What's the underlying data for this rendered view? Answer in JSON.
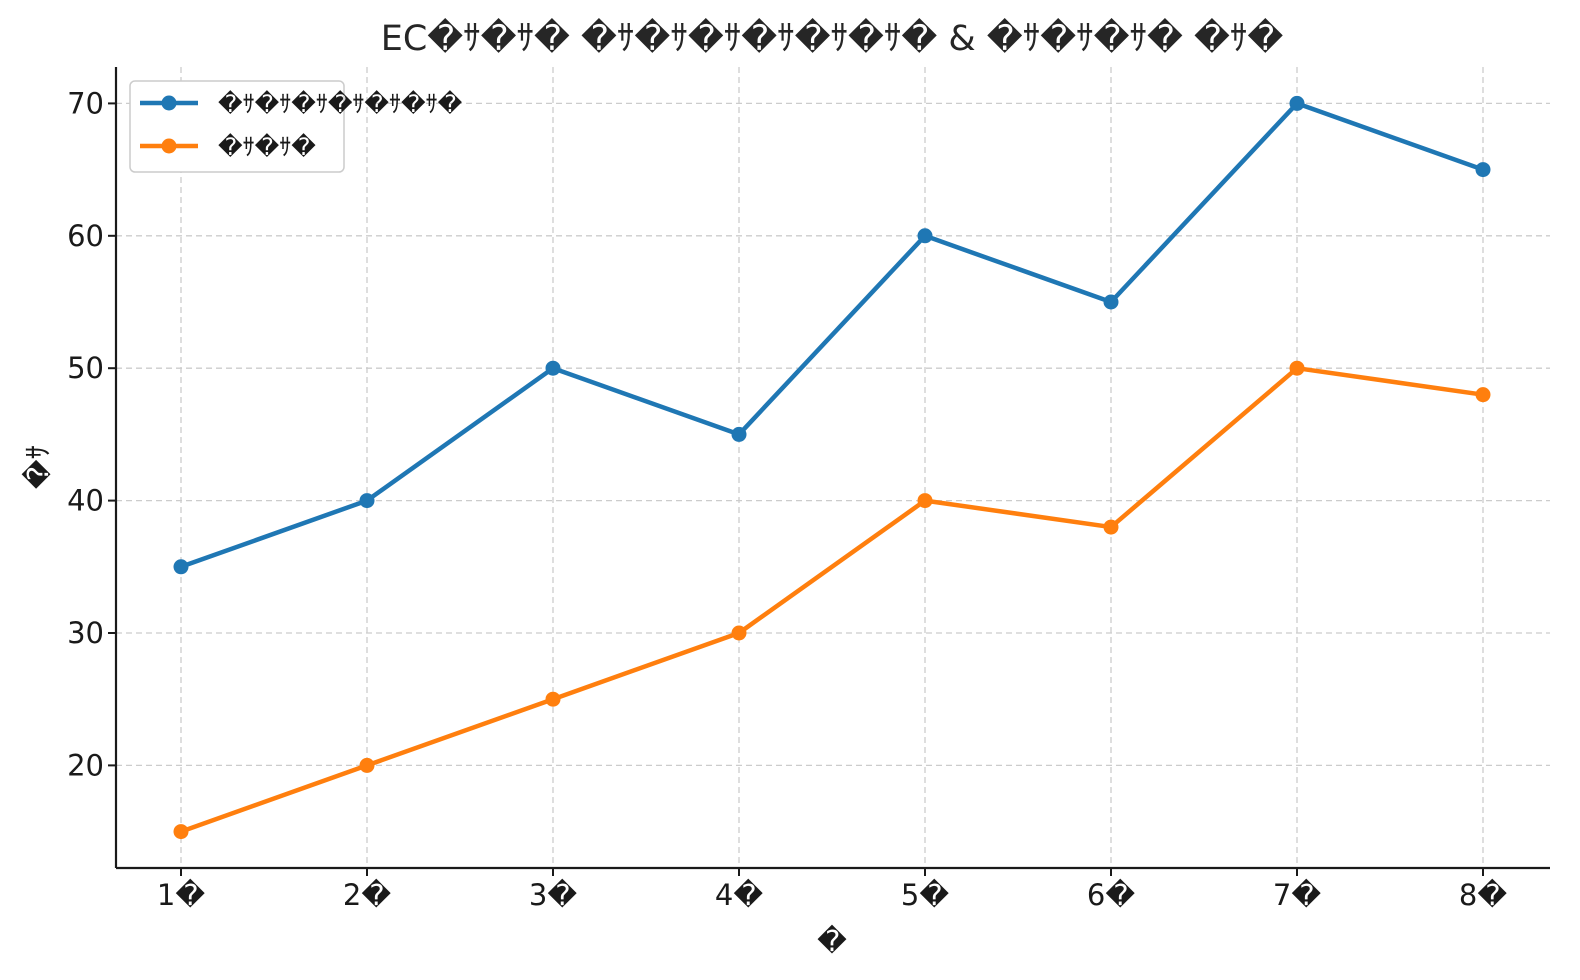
{
  "chart_data": {
    "type": "line",
    "title": "EC�ｻ�ｻ� �ｻ�ｻ�ｻ�ｻ�ｻ�ｻ� & �ｻ�ｻ�ｻ� �ｻ�",
    "xlabel": "�",
    "ylabel": "�ｻ",
    "categories": [
      "1�",
      "2�",
      "3�",
      "4�",
      "5�",
      "6�",
      "7�",
      "8�"
    ],
    "series": [
      {
        "name": "�ｻ�ｻ�ｻ�ｻ�ｻ�ｻ�",
        "color": "#1f77b4",
        "values": [
          35,
          40,
          50,
          45,
          60,
          55,
          70,
          65
        ]
      },
      {
        "name": "�ｻ�ｻ�",
        "color": "#ff7f0e",
        "values": [
          15,
          20,
          25,
          30,
          40,
          38,
          50,
          48
        ]
      }
    ],
    "yticks": [
      20,
      30,
      40,
      50,
      60,
      70
    ],
    "ylim": [
      12.25,
      72.75
    ],
    "grid": true,
    "legend": "top-left"
  }
}
